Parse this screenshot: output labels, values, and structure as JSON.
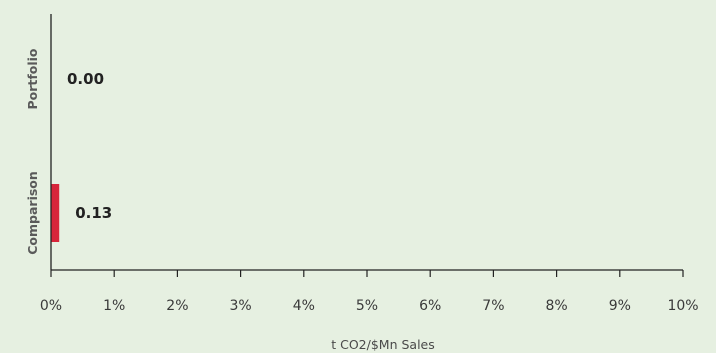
{
  "chart_data": {
    "type": "bar",
    "orientation": "horizontal",
    "categories": [
      "Portfolio",
      "Comparison"
    ],
    "values": [
      0.0,
      0.13
    ],
    "data_labels": [
      "0.00",
      "0.13"
    ],
    "xlabel": "t CO2/$Mn Sales",
    "xlim": [
      0,
      10
    ],
    "xticks": [
      0,
      1,
      2,
      3,
      4,
      5,
      6,
      7,
      8,
      9,
      10
    ],
    "xtick_labels": [
      "0%",
      "1%",
      "2%",
      "3%",
      "4%",
      "5%",
      "6%",
      "7%",
      "8%",
      "9%",
      "10%"
    ],
    "grid": false,
    "legend": "none",
    "colors": {
      "bar": "#d7253a",
      "background": "#e6f0e1",
      "axis": "#222222"
    }
  }
}
